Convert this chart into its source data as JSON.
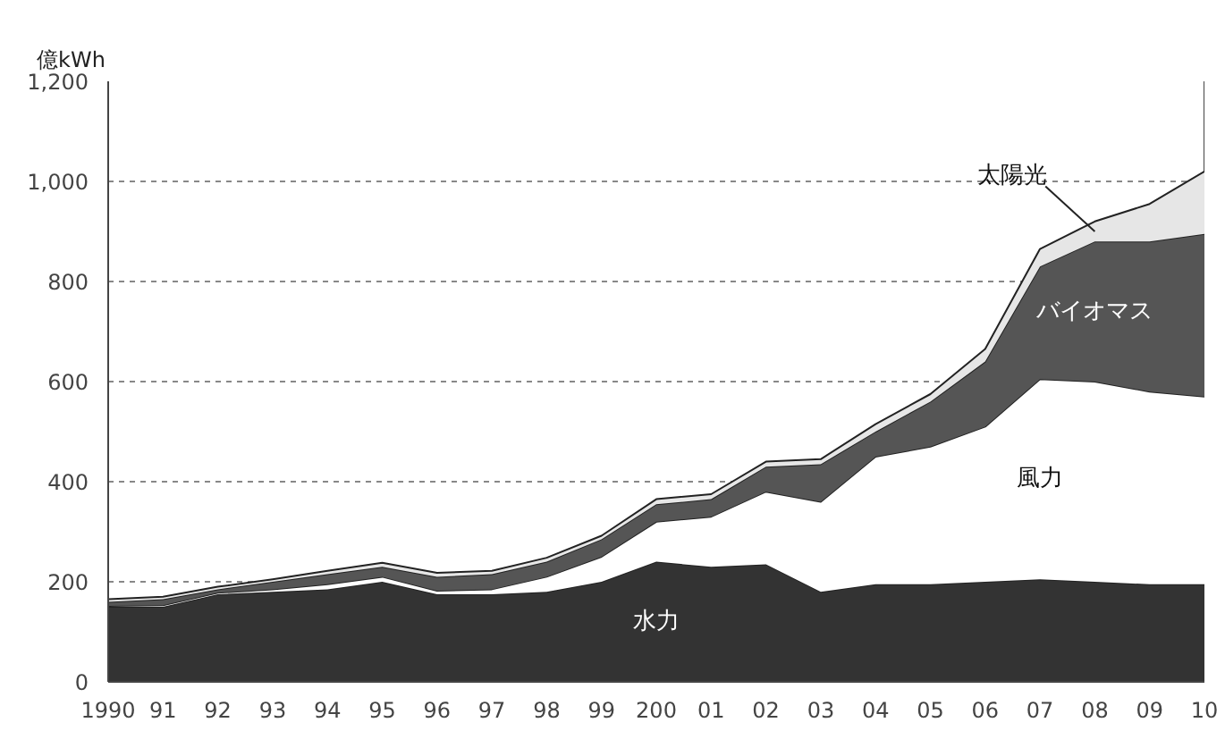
{
  "chart_data": {
    "type": "area",
    "stacked": true,
    "ylabel": "億kWh",
    "categories": [
      "1990",
      "91",
      "92",
      "93",
      "94",
      "95",
      "96",
      "97",
      "98",
      "99",
      "200",
      "01",
      "02",
      "03",
      "04",
      "05",
      "06",
      "07",
      "08",
      "09",
      "10"
    ],
    "series": [
      {
        "name": "水力",
        "color": "#333333",
        "values": [
          150,
          150,
          175,
          180,
          185,
          200,
          175,
          175,
          180,
          200,
          240,
          230,
          235,
          180,
          195,
          195,
          200,
          205,
          200,
          195,
          195
        ]
      },
      {
        "name": "風力",
        "color": "#ffffff",
        "values": [
          2,
          3,
          3,
          5,
          10,
          10,
          7,
          10,
          30,
          50,
          80,
          100,
          145,
          180,
          255,
          275,
          310,
          400,
          400,
          385,
          375
        ]
      },
      {
        "name": "バイオマス",
        "color": "#555555",
        "values": [
          8,
          12,
          7,
          15,
          20,
          20,
          28,
          30,
          30,
          35,
          35,
          35,
          50,
          75,
          50,
          90,
          130,
          225,
          280,
          300,
          325
        ]
      },
      {
        "name": "太陽光",
        "color": "#e6e6e6",
        "values": [
          5,
          5,
          5,
          5,
          7,
          8,
          8,
          7,
          8,
          7,
          10,
          10,
          10,
          10,
          15,
          15,
          25,
          35,
          40,
          75,
          125
        ]
      }
    ],
    "ylim": [
      0,
      1200
    ],
    "yticks": [
      0,
      200,
      400,
      600,
      800,
      {
        "value": 1000,
        "label": "1,000"
      },
      {
        "value": 1200,
        "label": "1,200"
      }
    ],
    "grid": "y"
  }
}
